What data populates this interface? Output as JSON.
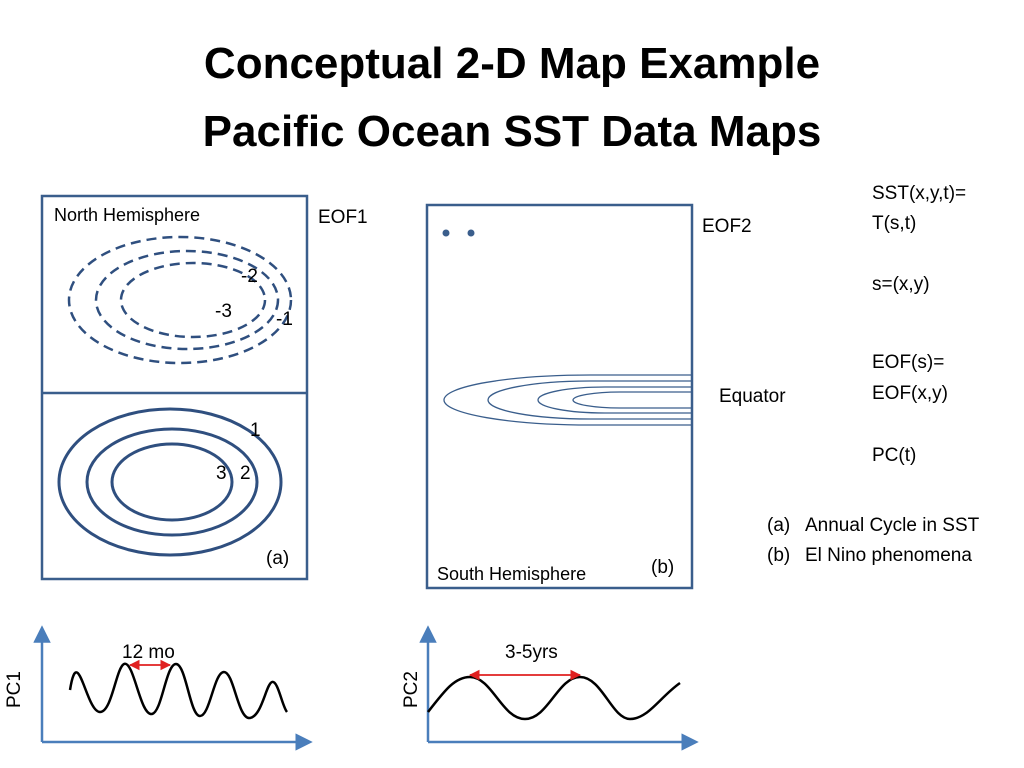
{
  "title": {
    "line1": "Conceptual 2-D Map Example",
    "line2": "Pacific Ocean SST Data Maps"
  },
  "panel_a": {
    "region_label": "North Hemisphere",
    "eof_label": "EOF1",
    "tag": "(a)",
    "neg_labels": [
      "-2",
      "-3",
      "-1"
    ],
    "pos_labels": [
      "1",
      "3",
      "2"
    ]
  },
  "panel_b": {
    "eof_label": "EOF2",
    "equator_label": "Equator",
    "region_label": "South Hemisphere",
    "tag": "(b)"
  },
  "formulas": {
    "line1": "SST(x,y,t)=",
    "line2": "T(s,t)",
    "line3": "s=(x,y)",
    "line4": "EOF(s)=",
    "line5": "EOF(x,y)",
    "line6": "PC(t)"
  },
  "legend": [
    {
      "marker": "(a)",
      "text": "Annual Cycle in SST"
    },
    {
      "marker": "(b)",
      "text": "El Nino phenomena"
    }
  ],
  "pc1": {
    "axis_label": "PC1",
    "period_label": "12 mo"
  },
  "pc2": {
    "axis_label": "PC2",
    "period_label": "3-5yrs"
  },
  "colors": {
    "frame": "#3a5e8c",
    "contour": "#2f4f7f",
    "axis": "#4a7ebb",
    "arrow": "#e02020"
  }
}
